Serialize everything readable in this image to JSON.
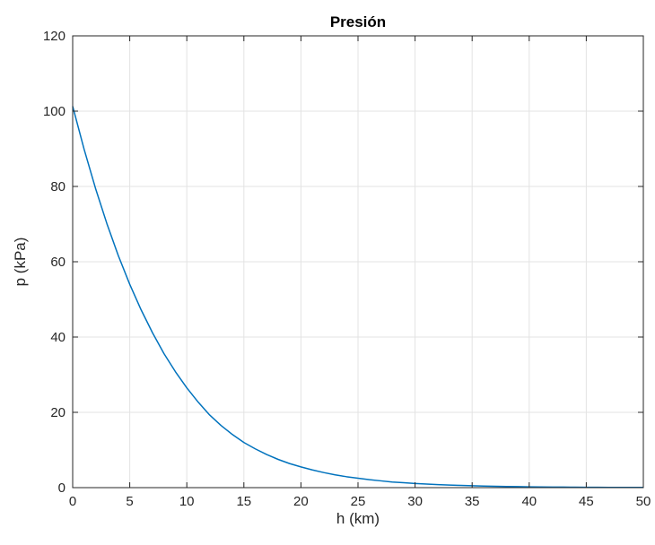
{
  "chart_data": {
    "type": "line",
    "title": "Presión",
    "xlabel": "h (km)",
    "ylabel": "p (kPa)",
    "xlim": [
      0,
      50
    ],
    "ylim": [
      0,
      120
    ],
    "xticks": [
      0,
      5,
      10,
      15,
      20,
      25,
      30,
      35,
      40,
      45,
      50
    ],
    "yticks": [
      0,
      20,
      40,
      60,
      80,
      100,
      120
    ],
    "grid": true,
    "colors": {
      "line": "#0072BD",
      "grid": "#e3e3e3",
      "axis": "#262626"
    },
    "series": [
      {
        "x": [
          0,
          1,
          2,
          3,
          4,
          5,
          6,
          7,
          8,
          9,
          10,
          11,
          12,
          13,
          14,
          15,
          16,
          17,
          18,
          19,
          20,
          21,
          22,
          23,
          24,
          25,
          26,
          27,
          28,
          29,
          30,
          31,
          32,
          33,
          34,
          35,
          36,
          37,
          38,
          39,
          40,
          41,
          42,
          43,
          44,
          45,
          46,
          47,
          48,
          49,
          50
        ],
        "y": [
          101.3,
          89.9,
          79.5,
          70.1,
          61.6,
          54.0,
          47.2,
          41.1,
          35.6,
          30.8,
          26.5,
          22.7,
          19.3,
          16.5,
          14.1,
          12.0,
          10.3,
          8.8,
          7.5,
          6.4,
          5.5,
          4.7,
          4.0,
          3.4,
          2.9,
          2.5,
          2.1,
          1.8,
          1.5,
          1.3,
          1.1,
          0.95,
          0.8,
          0.68,
          0.58,
          0.5,
          0.42,
          0.36,
          0.31,
          0.26,
          0.22,
          0.19,
          0.16,
          0.14,
          0.12,
          0.1,
          0.09,
          0.07,
          0.06,
          0.05,
          0.045
        ]
      }
    ]
  }
}
